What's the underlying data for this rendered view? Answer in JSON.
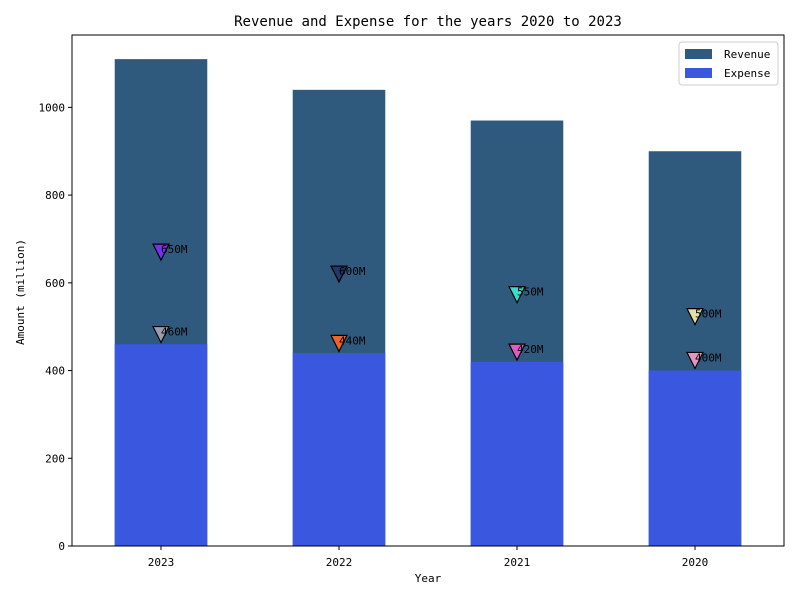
{
  "chart_data": {
    "type": "bar",
    "title": "Revenue and Expense for the years 2020 to 2023",
    "xlabel": "Year",
    "ylabel": "Amount (million)",
    "categories": [
      "2023",
      "2022",
      "2021",
      "2020"
    ],
    "series": [
      {
        "name": "Revenue",
        "values": [
          1110,
          1040,
          970,
          900
        ],
        "color": "#2f5a7d"
      },
      {
        "name": "Expense",
        "values": [
          460,
          440,
          420,
          400
        ],
        "color": "#3a57e0"
      }
    ],
    "ylim": [
      0,
      1165
    ],
    "yticks": [
      0,
      200,
      400,
      600,
      800,
      1000
    ],
    "grid": false,
    "legend_position": "top-right",
    "annotations": [
      {
        "category": "2023",
        "y": 670,
        "text": "650M",
        "color": "#7a2ff0"
      },
      {
        "category": "2023",
        "y": 482,
        "text": "460M",
        "color": "#9a9eac"
      },
      {
        "category": "2022",
        "y": 620,
        "text": "600M",
        "color": "#24366a"
      },
      {
        "category": "2022",
        "y": 462,
        "text": "440M",
        "color": "#f0622a"
      },
      {
        "category": "2021",
        "y": 573,
        "text": "550M",
        "color": "#39dcc8"
      },
      {
        "category": "2021",
        "y": 442,
        "text": "420M",
        "color": "#e05cc4"
      },
      {
        "category": "2020",
        "y": 523,
        "text": "500M",
        "color": "#e4dcaa"
      },
      {
        "category": "2020",
        "y": 423,
        "text": "400M",
        "color": "#e296c0"
      }
    ]
  }
}
